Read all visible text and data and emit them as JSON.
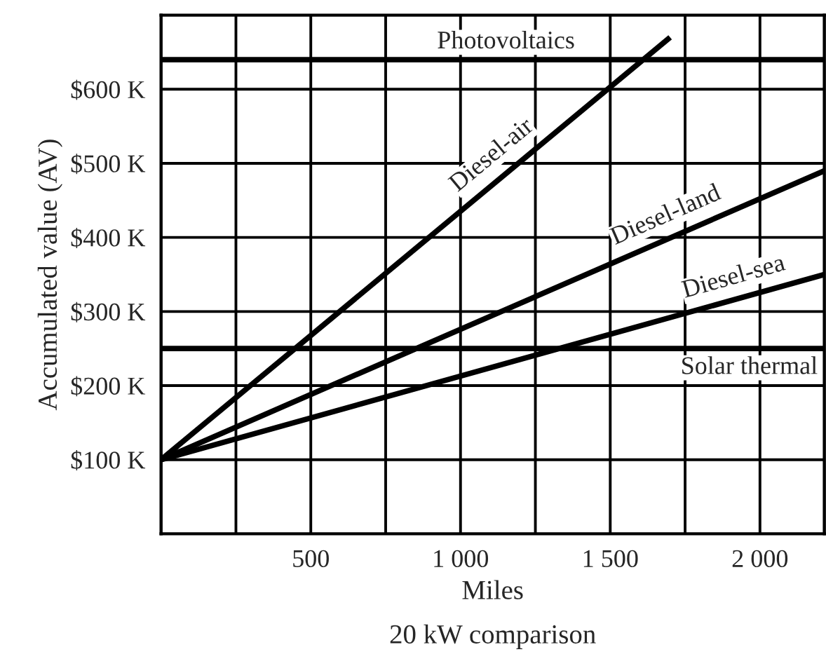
{
  "chart_data": {
    "type": "line",
    "title": "20 kW comparison",
    "xlabel": "Miles",
    "ylabel": "Accumulated value (AV)",
    "series": [
      {
        "name": "Diesel-air",
        "color": "#000000",
        "x": [
          0,
          1700
        ],
        "values": [
          100,
          670
        ]
      },
      {
        "name": "Diesel-land",
        "color": "#000000",
        "x": [
          0,
          2215
        ],
        "values": [
          100,
          490
        ]
      },
      {
        "name": "Diesel-sea",
        "color": "#000000",
        "x": [
          0,
          2215
        ],
        "values": [
          100,
          350
        ]
      }
    ],
    "ref_lines": [
      {
        "axis": "y",
        "value": 640,
        "label": "Photovoltaics",
        "color": "#000000"
      },
      {
        "axis": "y",
        "value": 250,
        "label": "Solar thermal",
        "color": "#000000"
      }
    ],
    "xlim": [
      0,
      2215
    ],
    "ylim": [
      0,
      700
    ],
    "xticks": [
      {
        "value": 250,
        "label": null
      },
      {
        "value": 500,
        "label": "500"
      },
      {
        "value": 750,
        "label": null
      },
      {
        "value": 1000,
        "label": "1 000"
      },
      {
        "value": 1250,
        "label": null
      },
      {
        "value": 1500,
        "label": "1 500"
      },
      {
        "value": 1750,
        "label": null
      },
      {
        "value": 2000,
        "label": "2 000"
      }
    ],
    "yticks": [
      {
        "value": 100,
        "label": "$100 K"
      },
      {
        "value": 200,
        "label": "$200 K"
      },
      {
        "value": 300,
        "label": "$300 K"
      },
      {
        "value": 400,
        "label": "$400 K"
      },
      {
        "value": 500,
        "label": "$500 K"
      },
      {
        "value": 600,
        "label": "$600 K"
      }
    ],
    "grid": true,
    "legend": false,
    "marker": "none",
    "line_style": "solid"
  }
}
